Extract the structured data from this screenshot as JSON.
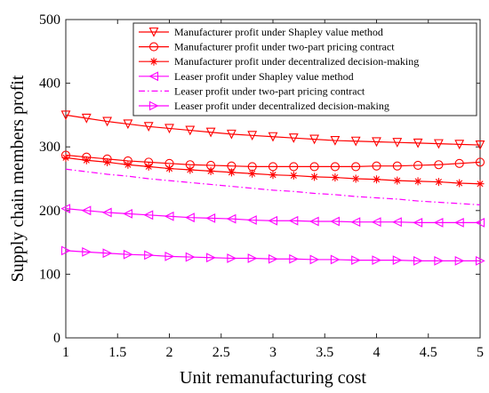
{
  "chart_data": {
    "type": "line",
    "title": "",
    "xlabel": "Unit remanufacturing cost",
    "ylabel": "Supply chain members profit",
    "xlim": [
      1,
      5
    ],
    "ylim": [
      0,
      500
    ],
    "xticks": [
      "1",
      "1.5",
      "2",
      "2.5",
      "3",
      "3.5",
      "4",
      "4.5",
      "5"
    ],
    "yticks": [
      "0",
      "100",
      "200",
      "300",
      "400",
      "500"
    ],
    "grid": false,
    "legend_position": "top-right",
    "x": [
      1,
      1.2,
      1.4,
      1.6,
      1.8,
      2,
      2.2,
      2.4,
      2.6,
      2.8,
      3,
      3.2,
      3.4,
      3.6,
      3.8,
      4,
      4.2,
      4.4,
      4.6,
      4.8,
      5
    ],
    "series": [
      {
        "name": "Manufacturer profit under Shapley value method",
        "color": "#ff0000",
        "marker": "triangle-down",
        "dash": "solid",
        "values": [
          350,
          345,
          340,
          336,
          332,
          329,
          326,
          323,
          320,
          318,
          316,
          314,
          312,
          310,
          309,
          308,
          307,
          306,
          305,
          304,
          303
        ]
      },
      {
        "name": "Manufacturer profit under two-part pricing contract",
        "color": "#ff0000",
        "marker": "circle",
        "dash": "solid",
        "values": [
          287,
          284,
          281,
          278,
          276,
          274,
          272,
          271,
          270,
          269,
          269,
          269,
          269,
          269,
          269,
          270,
          270,
          271,
          272,
          274,
          276
        ]
      },
      {
        "name": "Manufacturer profit under decentralized decision-making",
        "color": "#ff0000",
        "marker": "asterisk",
        "dash": "solid",
        "values": [
          283,
          279,
          276,
          272,
          269,
          266,
          264,
          262,
          260,
          258,
          256,
          255,
          253,
          252,
          250,
          249,
          247,
          246,
          245,
          243,
          242
        ]
      },
      {
        "name": "Leaser profit under Shapley value method",
        "color": "#ff00ff",
        "marker": "triangle-left",
        "dash": "solid",
        "values": [
          203,
          200,
          197,
          195,
          193,
          191,
          189,
          188,
          187,
          185,
          184,
          184,
          183,
          183,
          182,
          182,
          182,
          181,
          181,
          181,
          181
        ]
      },
      {
        "name": "Leaser profit under two-part pricing contract",
        "color": "#ff00ff",
        "marker": "none",
        "dash": "dashdot",
        "values": [
          265,
          261,
          257,
          254,
          250,
          247,
          244,
          241,
          238,
          235,
          232,
          230,
          227,
          225,
          222,
          220,
          218,
          215,
          213,
          211,
          209
        ]
      },
      {
        "name": "Leaser profit under decentralized decision-making",
        "color": "#ff00ff",
        "marker": "triangle-right",
        "dash": "solid",
        "values": [
          137,
          135,
          133,
          131,
          130,
          128,
          127,
          126,
          125,
          125,
          124,
          124,
          123,
          123,
          122,
          122,
          122,
          121,
          121,
          121,
          121
        ]
      }
    ]
  }
}
